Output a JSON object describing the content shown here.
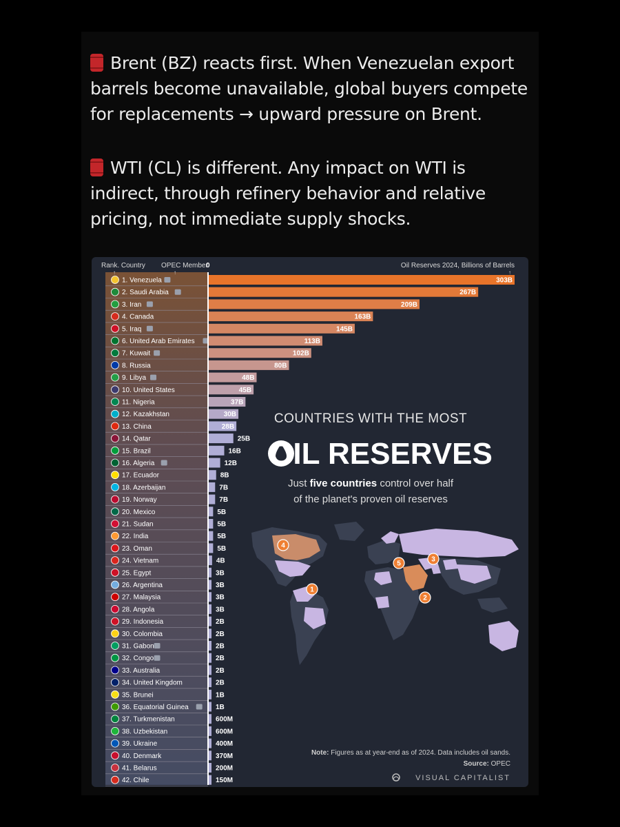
{
  "post": {
    "paragraph1": "Brent (BZ) reacts first. When Venezuelan export barrels become unavailable, global buyers compete for replacements → upward pressure on Brent.",
    "paragraph2": "WTI (CL) is different. Any impact on WTI is indirect,  through refinery behavior and relative pricing, not immediate supply shocks.",
    "emoji_icon": "oil-barrel-icon"
  },
  "infographic": {
    "header_rank": "Rank. Country",
    "header_opec": "OPEC Member",
    "header_zero": "0",
    "header_reserves": "Oil Reserves 2024, Billions of Barrels",
    "title_line1": "COUNTRIES WITH THE MOST",
    "title_line2": "OIL RESERVES",
    "subtitle_line1_prefix": "Just ",
    "subtitle_line1_bold": "five countries",
    "subtitle_line1_suffix": " control over half",
    "subtitle_line2": "of the planet's proven oil reserves",
    "note_label": "Note:",
    "note_text": "Figures as at year-end as of 2024. Data includes oil sands.",
    "source_label": "Source:",
    "source_text": "OPEC",
    "brand": "VISUAL CAPITALIST",
    "map_markers": [
      "1",
      "2",
      "3",
      "4",
      "5"
    ],
    "colors": {
      "background": "#222733",
      "bar_top": "#e8742a",
      "bar_bottom": "#b0aed6",
      "map_land": "#3a4152",
      "map_highlight": "#c8b6e2",
      "marker": "#ef7f32"
    }
  },
  "chart_data": {
    "type": "bar",
    "orientation": "horizontal",
    "title": "COUNTRIES WITH THE MOST OIL RESERVES",
    "xlabel": "Oil Reserves 2024, Billions of Barrels",
    "xlim": [
      0,
      303
    ],
    "grid": false,
    "categories": [
      "Venezuela",
      "Saudi Arabia",
      "Iran",
      "Canada",
      "Iraq",
      "United Arab Emirates",
      "Kuwait",
      "Russia",
      "Libya",
      "United States",
      "Nigeria",
      "Kazakhstan",
      "China",
      "Qatar",
      "Brazil",
      "Algeria",
      "Ecuador",
      "Azerbaijan",
      "Norway",
      "Mexico",
      "Sudan",
      "India",
      "Oman",
      "Vietnam",
      "Egypt",
      "Argentina",
      "Malaysia",
      "Angola",
      "Indonesia",
      "Colombia",
      "Gabon",
      "Congo",
      "Australia",
      "United Kingdom",
      "Brunei",
      "Equatorial Guinea",
      "Turkmenistan",
      "Uzbekistan",
      "Ukraine",
      "Denmark",
      "Belarus",
      "Chile"
    ],
    "values": [
      303,
      267,
      209,
      163,
      145,
      113,
      102,
      80,
      48,
      45,
      37,
      30,
      28,
      25,
      16,
      12,
      8,
      7,
      7,
      5,
      5,
      5,
      5,
      4,
      3,
      3,
      3,
      3,
      2,
      2,
      2,
      2,
      2,
      2,
      1,
      1,
      0.6,
      0.6,
      0.4,
      0.37,
      0.2,
      0.15
    ],
    "value_labels": [
      "303B",
      "267B",
      "209B",
      "163B",
      "145B",
      "113B",
      "102B",
      "80B",
      "48B",
      "45B",
      "37B",
      "30B",
      "28B",
      "25B",
      "16B",
      "12B",
      "8B",
      "7B",
      "7B",
      "5B",
      "5B",
      "5B",
      "5B",
      "4B",
      "3B",
      "3B",
      "3B",
      "3B",
      "2B",
      "2B",
      "2B",
      "2B",
      "2B",
      "2B",
      "1B",
      "1B",
      "600M",
      "600M",
      "400M",
      "370M",
      "200M",
      "150M"
    ],
    "opec_member": [
      true,
      true,
      true,
      false,
      true,
      true,
      true,
      false,
      true,
      false,
      false,
      false,
      false,
      false,
      false,
      true,
      false,
      false,
      false,
      false,
      false,
      false,
      false,
      false,
      false,
      false,
      false,
      false,
      false,
      false,
      true,
      true,
      false,
      false,
      false,
      true,
      false,
      false,
      false,
      false,
      false,
      false
    ],
    "flag_colors": [
      "#f4c430",
      "#1e8a3a",
      "#239f40",
      "#d52b1e",
      "#ce1126",
      "#00732f",
      "#007a3d",
      "#0039a6",
      "#239e46",
      "#3c3b6e",
      "#008751",
      "#00afca",
      "#de2910",
      "#8a1538",
      "#009c3b",
      "#006233",
      "#ffdd00",
      "#00b5e2",
      "#ba0c2f",
      "#006847",
      "#d21034",
      "#ff9933",
      "#db161b",
      "#da251d",
      "#ce1126",
      "#74acdf",
      "#cc0001",
      "#cc092f",
      "#ce1126",
      "#fcd116",
      "#009e60",
      "#009543",
      "#00008b",
      "#012169",
      "#f7e017",
      "#3e9a00",
      "#00843d",
      "#1eb53a",
      "#0057b7",
      "#c8102e",
      "#c8313e",
      "#d52b1e"
    ]
  }
}
